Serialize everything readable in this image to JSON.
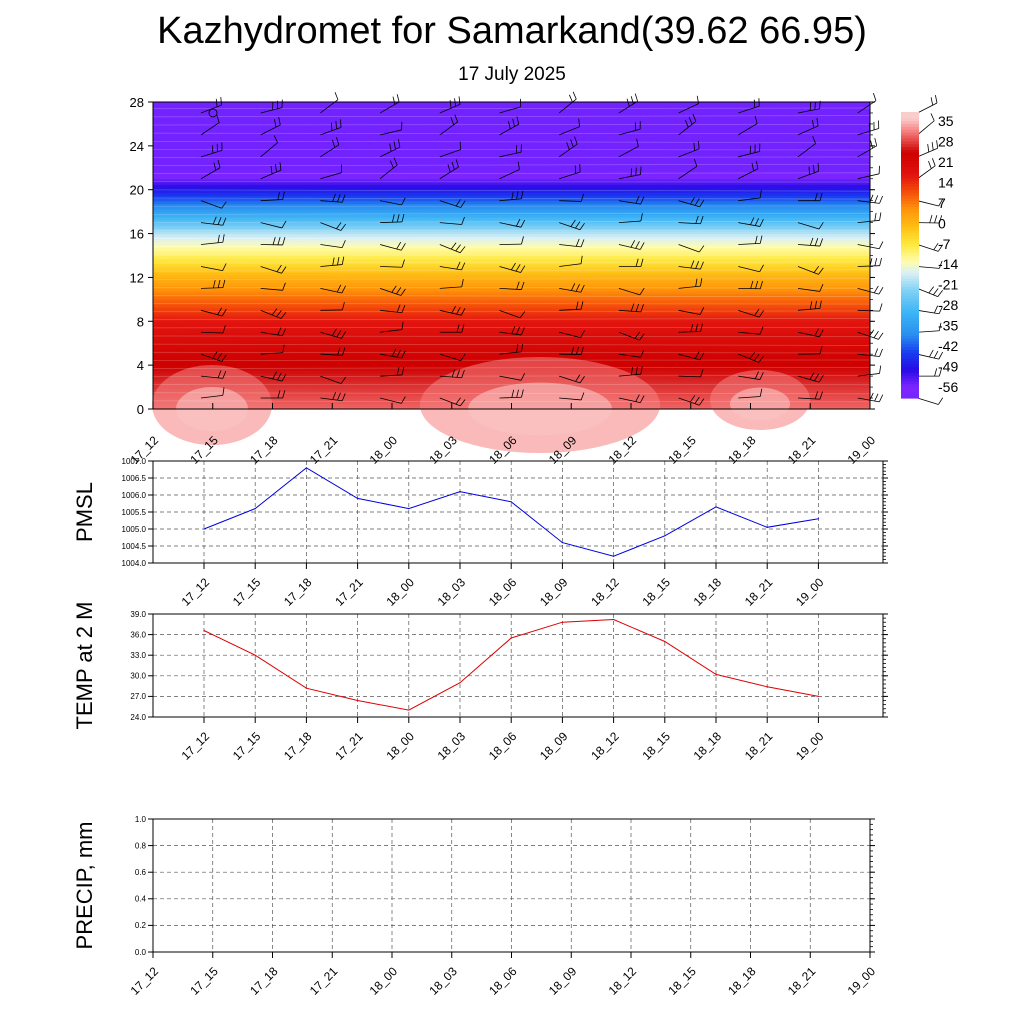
{
  "header": {
    "title": "Kazhydromet for Samarkand(39.62 66.95)",
    "date": "17 July 2025"
  },
  "colors": {
    "pmsl_line": "#0000dd",
    "temp_line": "#dd0000",
    "precip_line": "#006400",
    "grid": "#555555"
  },
  "chart_data": [
    {
      "type": "heatmap",
      "name": "upper-air-temperature-wind",
      "x_tick_labels": [
        "17_12",
        "17_15",
        "17_18",
        "17_21",
        "18_00",
        "18_03",
        "18_06",
        "18_09",
        "18_12",
        "18_15",
        "18_18",
        "18_21",
        "19_00"
      ],
      "y_ticks": [
        "0",
        "4",
        "8",
        "12",
        "16",
        "20",
        "24",
        "28"
      ],
      "ylim": [
        0,
        28
      ],
      "colorbar_labels": [
        "35",
        "28",
        "21",
        "14",
        "7",
        "0",
        "-7",
        "-14",
        "-21",
        "-28",
        "-35",
        "-42",
        "-49",
        "-56"
      ],
      "colorbar_range": [
        -60,
        40
      ],
      "temperature_by_height": [
        {
          "h": 0,
          "t": 32
        },
        {
          "h": 4,
          "t": 26
        },
        {
          "h": 8,
          "t": 18
        },
        {
          "h": 10,
          "t": 10
        },
        {
          "h": 12,
          "t": 2
        },
        {
          "h": 14,
          "t": -8
        },
        {
          "h": 16,
          "t": -18
        },
        {
          "h": 18,
          "t": -34
        },
        {
          "h": 20,
          "t": -48
        },
        {
          "h": 21,
          "t": -55
        },
        {
          "h": 22,
          "t": -62
        },
        {
          "h": 28,
          "t": -65
        }
      ],
      "wind_barbs": "present at every time step and height level"
    },
    {
      "type": "line",
      "name": "pmsl",
      "ylabel": "PMSL",
      "x_tick_labels": [
        "17_12",
        "17_15",
        "17_18",
        "17_21",
        "18_00",
        "18_03",
        "18_06",
        "18_09",
        "18_12",
        "18_15",
        "18_18",
        "18_21",
        "19_00"
      ],
      "y_ticks": [
        "1004.0",
        "1004.5",
        "1005.0",
        "1005.5",
        "1006.0",
        "1006.5",
        "1007.0"
      ],
      "ylim": [
        1004.0,
        1007.0
      ],
      "values": [
        1005.0,
        1005.6,
        1006.8,
        1005.9,
        1005.6,
        1006.1,
        1005.8,
        1004.6,
        1004.2,
        1004.8,
        1005.65,
        1005.05,
        1005.3
      ],
      "grid": true
    },
    {
      "type": "line",
      "name": "temp-2m",
      "ylabel": "TEMP at 2 M",
      "x_tick_labels": [
        "17_12",
        "17_15",
        "17_18",
        "17_21",
        "18_00",
        "18_03",
        "18_06",
        "18_09",
        "18_12",
        "18_15",
        "18_18",
        "18_21",
        "19_00"
      ],
      "y_ticks": [
        "24.0",
        "27.0",
        "30.0",
        "33.0",
        "36.0",
        "39.0"
      ],
      "ylim": [
        24.0,
        39.0
      ],
      "values": [
        36.6,
        33.0,
        28.2,
        26.4,
        25.0,
        29.0,
        35.5,
        37.8,
        38.2,
        35.0,
        30.2,
        28.4,
        27.0
      ],
      "grid": true
    },
    {
      "type": "line",
      "name": "precip",
      "ylabel": "PRECIP, mm",
      "x_tick_labels": [
        "17_12",
        "17_15",
        "17_18",
        "17_21",
        "18_00",
        "18_03",
        "18_06",
        "18_09",
        "18_12",
        "18_15",
        "18_18",
        "18_21",
        "19_00"
      ],
      "y_ticks": [
        "0.0",
        "0.2",
        "0.4",
        "0.6",
        "0.8",
        "1.0"
      ],
      "ylim": [
        0.0,
        1.0
      ],
      "values": [
        0,
        0,
        0,
        0,
        0,
        0,
        0,
        0,
        0,
        0,
        0,
        0,
        0
      ],
      "grid": true
    }
  ]
}
